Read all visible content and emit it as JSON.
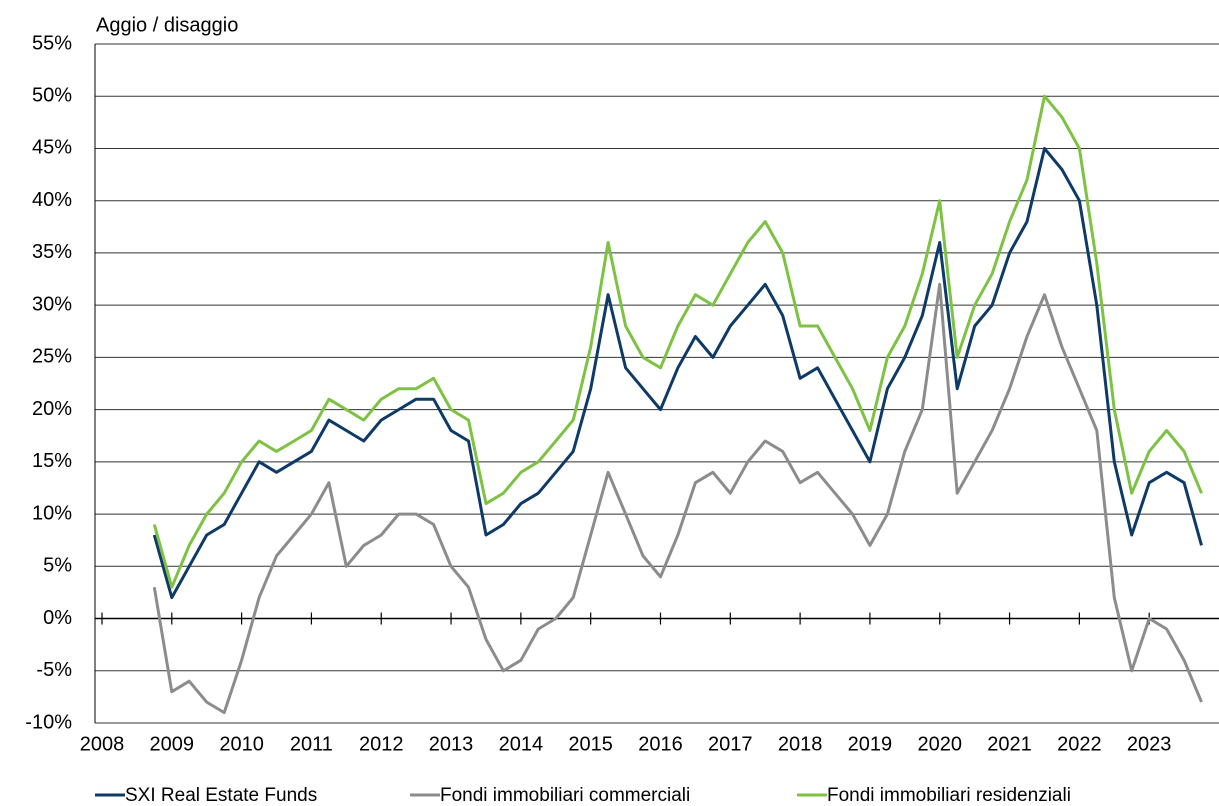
{
  "chart_data": {
    "type": "line",
    "title": "Aggio / disaggio",
    "x": [
      2008.75,
      2009,
      2009.25,
      2009.5,
      2009.75,
      2010,
      2010.25,
      2010.5,
      2010.75,
      2011,
      2011.25,
      2011.5,
      2011.75,
      2012,
      2012.25,
      2012.5,
      2012.75,
      2013,
      2013.25,
      2013.5,
      2013.75,
      2014,
      2014.25,
      2014.5,
      2014.75,
      2015,
      2015.25,
      2015.5,
      2015.75,
      2016,
      2016.25,
      2016.5,
      2016.75,
      2017,
      2017.25,
      2017.5,
      2017.75,
      2018,
      2018.25,
      2018.5,
      2018.75,
      2019,
      2019.25,
      2019.5,
      2019.75,
      2020,
      2020.25,
      2020.5,
      2020.75,
      2021,
      2021.25,
      2021.5,
      2021.75,
      2022,
      2022.25,
      2022.5,
      2022.75,
      2023,
      2023.25,
      2023.5,
      2023.75
    ],
    "series": [
      {
        "name": "SXI Real Estate Funds",
        "color": "#0d3a66",
        "values": [
          8,
          2,
          5,
          8,
          9,
          12,
          15,
          14,
          15,
          16,
          19,
          18,
          17,
          19,
          20,
          21,
          21,
          18,
          17,
          8,
          9,
          11,
          12,
          14,
          16,
          22,
          31,
          24,
          22,
          20,
          24,
          27,
          25,
          28,
          30,
          32,
          29,
          23,
          24,
          21,
          18,
          15,
          22,
          25,
          29,
          36,
          22,
          28,
          30,
          35,
          38,
          45,
          43,
          40,
          30,
          15,
          8,
          13,
          14,
          13,
          7
        ]
      },
      {
        "name": "Fondi immobiliari commerciali",
        "color": "#8c8c8c",
        "values": [
          3,
          -7,
          -6,
          -8,
          -9,
          -4,
          2,
          6,
          8,
          10,
          13,
          5,
          7,
          8,
          10,
          10,
          9,
          5,
          3,
          -2,
          -5,
          -4,
          -1,
          0,
          2,
          8,
          14,
          10,
          6,
          4,
          8,
          13,
          14,
          12,
          15,
          17,
          16,
          13,
          14,
          12,
          10,
          7,
          10,
          16,
          20,
          32,
          12,
          15,
          18,
          22,
          27,
          31,
          26,
          22,
          18,
          2,
          -5,
          0,
          -1,
          -4,
          -8
        ]
      },
      {
        "name": "Fondi immobiliari residenziali",
        "color": "#7dc242",
        "values": [
          9,
          3,
          7,
          10,
          12,
          15,
          17,
          16,
          17,
          18,
          21,
          20,
          19,
          21,
          22,
          22,
          23,
          20,
          19,
          11,
          12,
          14,
          15,
          17,
          19,
          26,
          36,
          28,
          25,
          24,
          28,
          31,
          30,
          33,
          36,
          38,
          35,
          28,
          28,
          25,
          22,
          18,
          25,
          28,
          33,
          40,
          25,
          30,
          33,
          38,
          42,
          50,
          48,
          45,
          34,
          20,
          12,
          16,
          18,
          16,
          12
        ]
      }
    ],
    "xlim": [
      2007.9,
      2024.0
    ],
    "xticks": [
      2008,
      2009,
      2010,
      2011,
      2012,
      2013,
      2014,
      2015,
      2016,
      2017,
      2018,
      2019,
      2020,
      2021,
      2022,
      2023
    ],
    "ylim": [
      -10,
      55
    ],
    "yticks": [
      {
        "value": -10,
        "label": "-10%"
      },
      {
        "value": -5,
        "label": "-5%"
      },
      {
        "value": 0,
        "label": "0%"
      },
      {
        "value": 5,
        "label": "5%"
      },
      {
        "value": 10,
        "label": "10%"
      },
      {
        "value": 15,
        "label": "15%"
      },
      {
        "value": 20,
        "label": "20%"
      },
      {
        "value": 25,
        "label": "25%"
      },
      {
        "value": 30,
        "label": "30%"
      },
      {
        "value": 35,
        "label": "35%"
      },
      {
        "value": 40,
        "label": "40%"
      },
      {
        "value": 45,
        "label": "45%"
      },
      {
        "value": 50,
        "label": "50%"
      },
      {
        "value": 55,
        "label": "55%"
      }
    ],
    "grid": true
  }
}
